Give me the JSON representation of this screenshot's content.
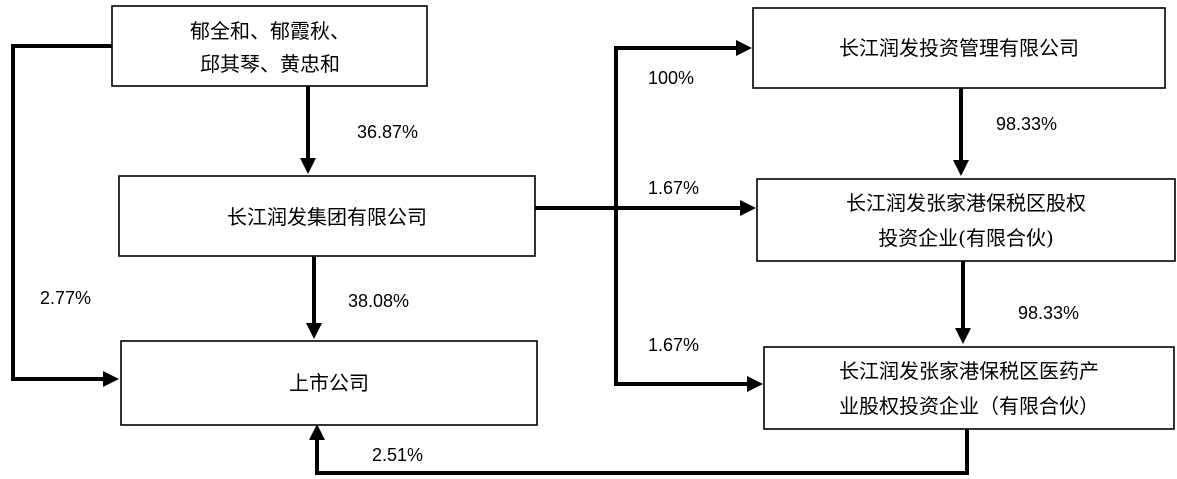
{
  "nodes": {
    "shareholders": {
      "lines": [
        "郁全和、郁霞秋、",
        "邱其琴、黄忠和"
      ]
    },
    "group": {
      "lines": [
        "长江润发集团有限公司"
      ]
    },
    "listed": {
      "lines": [
        "上市公司"
      ]
    },
    "investment_mgmt": {
      "lines": [
        "长江润发投资管理有限公司"
      ]
    },
    "equity_fund": {
      "lines": [
        "长江润发张家港保税区股权",
        "投资企业(有限合伙)"
      ]
    },
    "pharma_fund": {
      "lines": [
        "长江润发张家港保税区医药产",
        "业股权投资企业（有限合伙）"
      ]
    }
  },
  "edges": {
    "shareholders_to_group": "36.87%",
    "group_to_listed": "38.08%",
    "shareholders_to_listed": "2.77%",
    "group_to_investment_mgmt": "100%",
    "group_to_equity_fund": "1.67%",
    "group_to_pharma_fund": "1.67%",
    "investment_mgmt_to_equity_fund": "98.33%",
    "equity_fund_to_pharma_fund": "98.33%",
    "pharma_fund_to_listed": "2.51%"
  }
}
